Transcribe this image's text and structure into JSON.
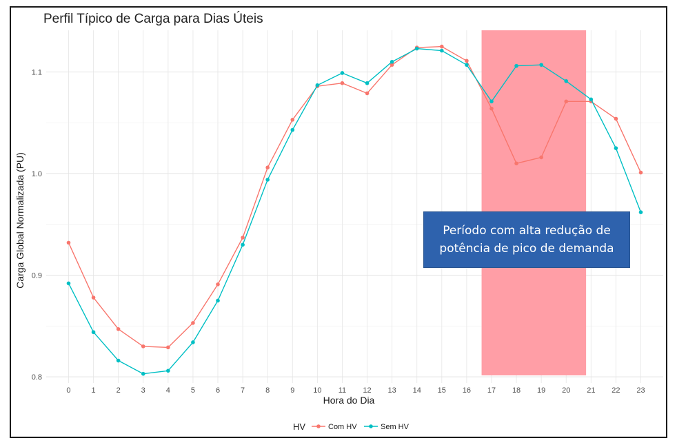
{
  "chart_data": {
    "type": "line",
    "title": "Perfil Típico de Carga para Dias Úteis",
    "xlabel": "Hora do Dia",
    "ylabel": "Carga Global Normalizada (PU)",
    "x": [
      0,
      1,
      2,
      3,
      4,
      5,
      6,
      7,
      8,
      9,
      10,
      11,
      12,
      13,
      14,
      15,
      16,
      17,
      18,
      19,
      20,
      21,
      22,
      23
    ],
    "x_tick_labels": [
      "0",
      "1",
      "2",
      "3",
      "4",
      "5",
      "6",
      "7",
      "8",
      "9",
      "10",
      "11",
      "12",
      "13",
      "14",
      "15",
      "16",
      "17",
      "18",
      "19",
      "20",
      "21",
      "22",
      "23"
    ],
    "xlim": [
      -0.9,
      23.9
    ],
    "ylim": [
      0.794,
      1.141
    ],
    "y_ticks": [
      0.8,
      0.9,
      1.0,
      1.1
    ],
    "y_tick_labels": [
      "0.8",
      "0.9",
      "1.0",
      "1.1"
    ],
    "grid": true,
    "legend": {
      "title": "HV",
      "position": "bottom"
    },
    "series": [
      {
        "name": "Com HV",
        "color": "#F8766D",
        "values": [
          0.932,
          0.878,
          0.847,
          0.83,
          0.829,
          0.853,
          0.891,
          0.937,
          1.006,
          1.053,
          1.086,
          1.089,
          1.079,
          1.107,
          1.124,
          1.125,
          1.111,
          1.064,
          1.01,
          1.016,
          1.071,
          1.071,
          1.054,
          1.001
        ]
      },
      {
        "name": "Sem HV",
        "color": "#00BFC4",
        "values": [
          0.892,
          0.844,
          0.816,
          0.803,
          0.806,
          0.834,
          0.875,
          0.93,
          0.994,
          1.043,
          1.087,
          1.099,
          1.089,
          1.11,
          1.123,
          1.121,
          1.107,
          1.071,
          1.106,
          1.107,
          1.091,
          1.073,
          1.025,
          0.962
        ]
      }
    ],
    "highlight_band": {
      "x_from": 16.6,
      "x_to": 20.8,
      "color": "#ff9ea6"
    },
    "annotation": {
      "text": "Período com alta redução de potência de pico de demanda",
      "box_color": "#2e62ad"
    }
  }
}
